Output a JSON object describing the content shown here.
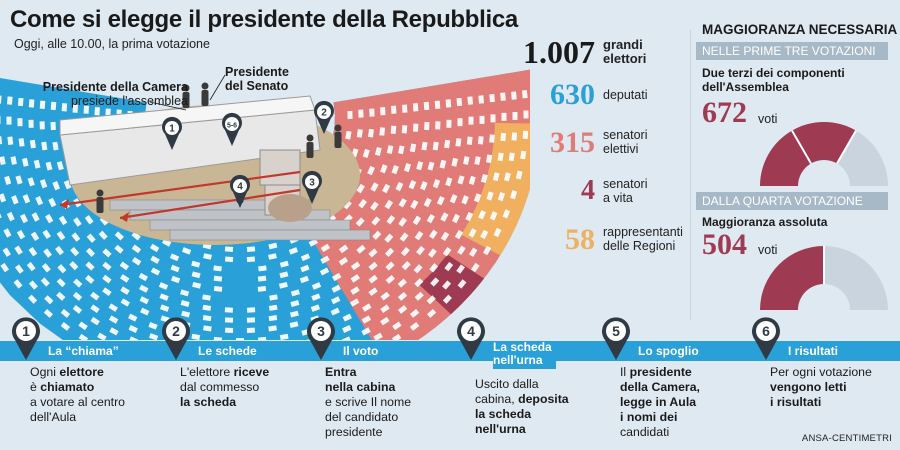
{
  "header": {
    "title": "Come si elegge il presidente della Repubblica",
    "subtitle": "Oggi, alle 10.00, la prima votazione"
  },
  "hemicycle_labels": {
    "camera_line1": "Presidente della Camera",
    "camera_line2": "presiede l'assemblea",
    "senato_line1": "Presidente",
    "senato_line2": "del Senato",
    "markers": [
      "1",
      "2",
      "3",
      "4",
      "5-6"
    ]
  },
  "electors": {
    "total": {
      "value": "1.007",
      "label_line1": "grandi",
      "label_line2": "elettori",
      "color": "#1a1a1a"
    },
    "groups": [
      {
        "value": "630",
        "label_line1": "deputati",
        "label_line2": "",
        "color": "#2aa0d8"
      },
      {
        "value": "315",
        "label_line1": "senatori",
        "label_line2": "elettivi",
        "color": "#e07b78"
      },
      {
        "value": "4",
        "label_line1": "senatori",
        "label_line2": "a vita",
        "color": "#9e3a52"
      },
      {
        "value": "58",
        "label_line1": "rappresentanti",
        "label_line2": "delle Regioni",
        "color": "#f0b060"
      }
    ]
  },
  "majority": {
    "title": "MAGGIORANZA NECESSARIA",
    "first": {
      "band": "NELLE PRIME TRE VOTAZIONI",
      "desc_line1": "Due terzi dei componenti",
      "desc_line2": "dell'Assemblea",
      "value": "672",
      "unit": "voti",
      "fraction": 0.6667
    },
    "fourth": {
      "band": "DALLA QUARTA VOTAZIONE",
      "desc_line1": "Maggioranza assoluta",
      "value": "504",
      "unit": "voti",
      "fraction": 0.5
    },
    "colors": {
      "main": "#9e3a52",
      "rest": "#c9d4de"
    }
  },
  "steps": [
    {
      "num": "1",
      "label": "La “chiama”",
      "label2": "",
      "lines": [
        [
          "Ogni ",
          "elettore"
        ],
        [
          "è ",
          "chiamato"
        ],
        [
          "a votare",
          " al centro"
        ],
        [
          "dell'Aula",
          ""
        ]
      ]
    },
    {
      "num": "2",
      "label": "Le schede",
      "label2": "",
      "lines": [
        [
          "L'elettore ",
          "riceve"
        ],
        [
          "dal commesso",
          ""
        ],
        [
          " ",
          "la scheda"
        ]
      ]
    },
    {
      "num": "3",
      "label": "Il voto",
      "label2": "",
      "lines": [
        [
          "",
          "Entra"
        ],
        [
          "",
          "nella cabina"
        ],
        [
          "e scrive Il nome",
          ""
        ],
        [
          "del candidato",
          ""
        ],
        [
          "presidente",
          ""
        ]
      ]
    },
    {
      "num": "4",
      "label": "La scheda",
      "label2": "nell'urna",
      "lines": [
        [
          "Uscito dalla",
          ""
        ],
        [
          "cabina, ",
          "deposita"
        ],
        [
          "",
          "la scheda"
        ],
        [
          "",
          "nell'urna"
        ]
      ]
    },
    {
      "num": "5",
      "label": "Lo spoglio",
      "label2": "",
      "lines": [
        [
          "Il ",
          "presidente"
        ],
        [
          "",
          "della Camera,"
        ],
        [
          "",
          "legge in Aula"
        ],
        [
          "",
          "i nomi dei"
        ],
        [
          "candidati",
          ""
        ]
      ]
    },
    {
      "num": "6",
      "label": "I risultati",
      "label2": "",
      "lines": [
        [
          "Per ogni votazione",
          ""
        ],
        [
          "",
          "vengono letti"
        ],
        [
          "",
          "i risultati"
        ]
      ]
    }
  ],
  "credit": "ANSA-CENTIMETRI"
}
